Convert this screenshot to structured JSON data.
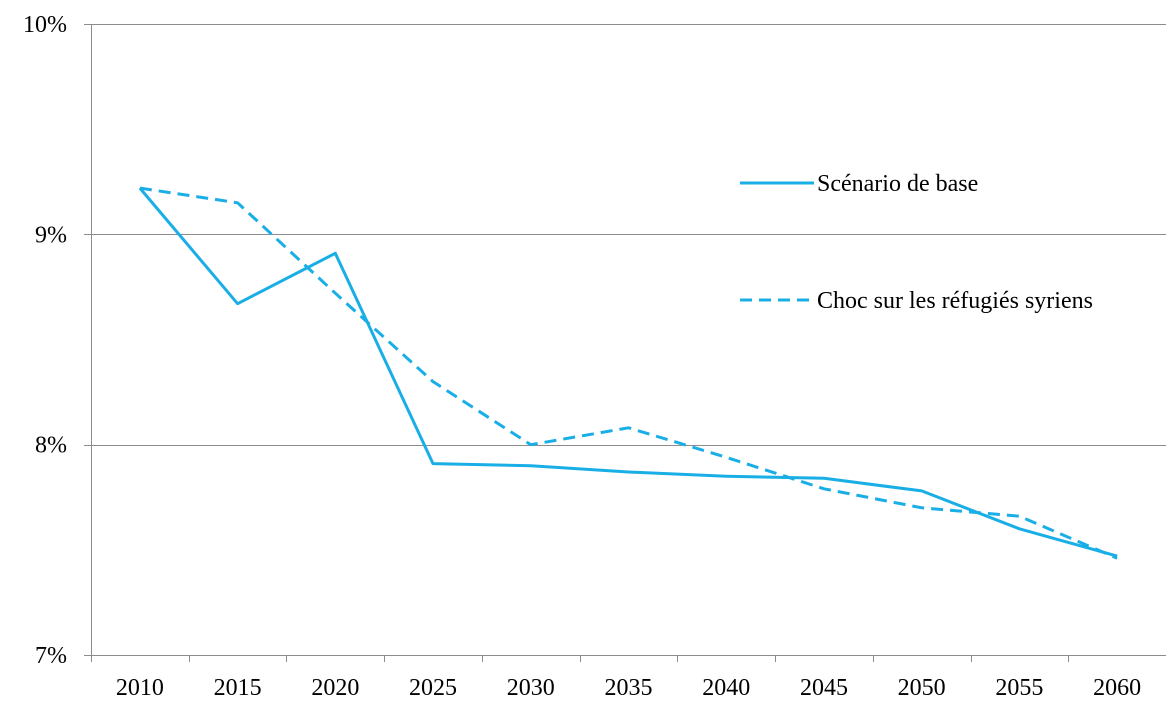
{
  "chart_data": {
    "type": "line",
    "title": "",
    "xlabel": "",
    "ylabel": "",
    "x": [
      "2010",
      "2015",
      "2020",
      "2025",
      "2030",
      "2035",
      "2040",
      "2045",
      "2050",
      "2055",
      "2060"
    ],
    "ylim": [
      7,
      10
    ],
    "y_ticks": [
      7,
      8,
      9,
      10
    ],
    "y_tick_labels": [
      "7%",
      "8%",
      "9%",
      "10%"
    ],
    "grid": "horizontal",
    "legend_position": "right",
    "series": [
      {
        "name": "Scénario de base",
        "style": "solid",
        "color": "#19aee6",
        "values": [
          9.22,
          8.67,
          8.91,
          7.91,
          7.9,
          7.87,
          7.85,
          7.84,
          7.78,
          7.6,
          7.47
        ]
      },
      {
        "name": "Choc sur les réfugiés syriens",
        "style": "dashed",
        "color": "#19aee6",
        "values": [
          9.22,
          9.15,
          8.72,
          8.3,
          8.0,
          8.08,
          7.94,
          7.79,
          7.7,
          7.66,
          7.46
        ]
      }
    ]
  }
}
